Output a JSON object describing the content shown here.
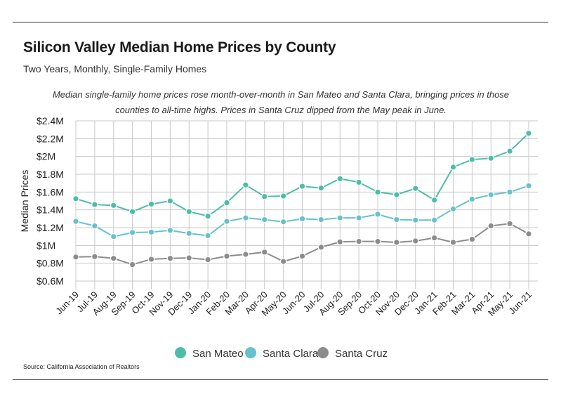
{
  "title": "Silicon Valley Median Home Prices by County",
  "subtitle": "Two Years, Monthly, Single-Family Homes",
  "note": "Median single-family home prices rose month-over-month in San Mateo and Santa Clara, bringing prices in those counties to all-time highs. Prices in Santa Cruz dipped from the May peak in June.",
  "source": "Source:  California Association of Realtors",
  "colors": {
    "san_mateo": "#4dbdaa",
    "santa_clara": "#67c1cd",
    "santa_cruz": "#8c8c8c",
    "grid": "#c8c8c8"
  },
  "chart_data": {
    "type": "line",
    "ylabel": "Median Prices",
    "xlabel": "",
    "ylim": [
      0.6,
      2.4
    ],
    "yticks": [
      "$2.4M",
      "$2.2M",
      "$2M",
      "$1.8M",
      "$1.6M",
      "$1.4M",
      "$1.2M",
      "$1M",
      "$0.8M",
      "$0.6M"
    ],
    "ytick_values": [
      2.4,
      2.2,
      2.0,
      1.8,
      1.6,
      1.4,
      1.2,
      1.0,
      0.8,
      0.6
    ],
    "grid": true,
    "legend_position": "bottom",
    "categories": [
      "Jun-19",
      "Jul-19",
      "Aug-19",
      "Sep-19",
      "Oct-19",
      "Nov-19",
      "Dec-19",
      "Jan-20",
      "Feb-20",
      "Mar-20",
      "Apr-20",
      "May-20",
      "Jun-20",
      "Jul-20",
      "Aug-20",
      "Sep-20",
      "Oct-20",
      "Nov-20",
      "Dec-20",
      "Jan-21",
      "Feb-21",
      "Mar-21",
      "Apr-21",
      "May-21",
      "Jun-21"
    ],
    "series": [
      {
        "name": "San Mateo",
        "color": "#4dbdaa",
        "values": [
          1.525,
          1.46,
          1.45,
          1.38,
          1.465,
          1.5,
          1.38,
          1.33,
          1.48,
          1.68,
          1.55,
          1.555,
          1.665,
          1.645,
          1.75,
          1.71,
          1.6,
          1.57,
          1.64,
          1.51,
          1.88,
          1.965,
          1.98,
          2.06,
          2.26
        ]
      },
      {
        "name": "Santa Clara",
        "color": "#67c1cd",
        "values": [
          1.27,
          1.22,
          1.1,
          1.145,
          1.15,
          1.17,
          1.135,
          1.11,
          1.27,
          1.31,
          1.29,
          1.265,
          1.3,
          1.29,
          1.31,
          1.31,
          1.35,
          1.29,
          1.285,
          1.285,
          1.41,
          1.52,
          1.57,
          1.6,
          1.67
        ]
      },
      {
        "name": "Santa Cruz",
        "color": "#8c8c8c",
        "values": [
          0.87,
          0.875,
          0.855,
          0.785,
          0.845,
          0.855,
          0.86,
          0.84,
          0.88,
          0.9,
          0.925,
          0.82,
          0.88,
          0.98,
          1.04,
          1.045,
          1.045,
          1.035,
          1.05,
          1.085,
          1.035,
          1.07,
          1.22,
          1.245,
          1.13
        ]
      }
    ]
  }
}
